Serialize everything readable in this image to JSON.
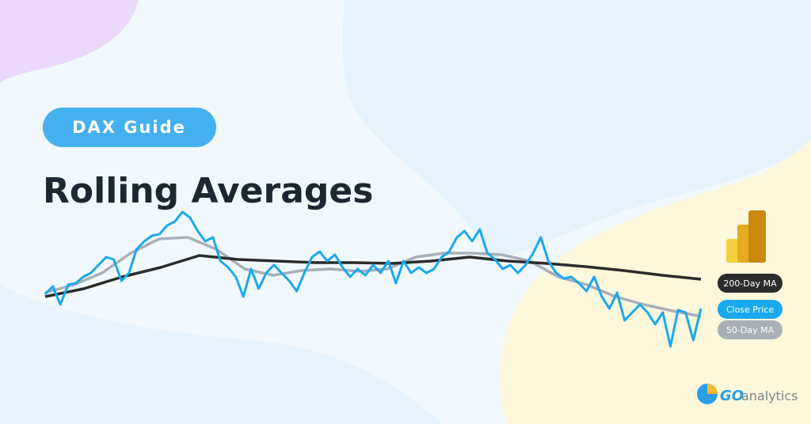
{
  "badge": "DAX Guide",
  "title": "Rolling Averages",
  "logo": {
    "mark": "GO",
    "text": "analytics"
  },
  "chart_data": {
    "type": "line",
    "series": [
      {
        "name": "200-Day MA",
        "color": "#2b2b2b",
        "values": [
          70,
          80,
          95,
          107,
          122,
          117,
          115,
          113,
          113,
          112,
          115,
          120,
          115,
          112,
          108,
          103,
          97,
          92
        ]
      },
      {
        "name": "Close Price",
        "color": "#19a9ef",
        "values": [
          73,
          83,
          60,
          85,
          87,
          95,
          100,
          110,
          120,
          117,
          90,
          100,
          130,
          140,
          147,
          149,
          160,
          165,
          177,
          170,
          153,
          140,
          145,
          115,
          107,
          95,
          70,
          105,
          80,
          100,
          110,
          100,
          90,
          77,
          100,
          120,
          127,
          115,
          123,
          107,
          95,
          105,
          97,
          110,
          100,
          115,
          87,
          115,
          100,
          107,
          100,
          105,
          120,
          127,
          145,
          153,
          140,
          155,
          125,
          117,
          105,
          110,
          100,
          110,
          125,
          145,
          115,
          100,
          93,
          95,
          87,
          77,
          95,
          70,
          55,
          75,
          40,
          50,
          60,
          50,
          35,
          50,
          7,
          53,
          50,
          15,
          55
        ]
      },
      {
        "name": "50-Day MA",
        "color": "#a9afb7",
        "values": [
          75,
          85,
          100,
          125,
          143,
          145,
          130,
          105,
          97,
          103,
          105,
          102,
          105,
          120,
          125,
          125,
          123,
          115,
          95,
          85,
          70,
          60,
          52,
          45
        ]
      }
    ]
  }
}
